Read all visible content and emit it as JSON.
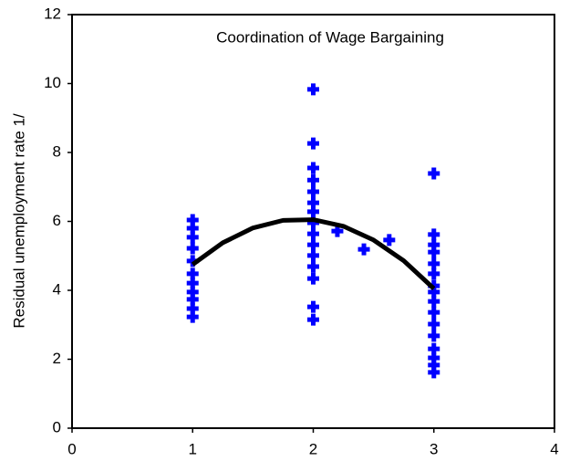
{
  "chart_data": {
    "type": "scatter",
    "title": "Coordination of Wage Bargaining",
    "y_label": "Residual unemployment rate 1/",
    "xlim": [
      0,
      4
    ],
    "xticks": [
      0,
      1,
      2,
      3,
      4
    ],
    "ylim": [
      0,
      12
    ],
    "yticks": [
      0,
      2,
      4,
      6,
      8,
      10,
      12
    ],
    "grid": false,
    "series": [
      {
        "type": "scatter",
        "color": "#0000ff",
        "x": [
          1,
          1,
          1,
          1,
          1,
          1,
          1,
          1,
          1,
          1,
          1,
          2,
          2,
          2,
          2,
          2,
          2,
          2,
          2,
          2,
          2,
          2,
          2,
          2,
          2,
          2,
          2.2,
          2.42,
          2.63,
          3,
          3,
          3,
          3,
          3,
          3,
          3,
          3,
          3,
          3,
          3,
          3,
          3,
          3,
          3,
          3
        ],
        "values": [
          6.04,
          5.8,
          5.54,
          5.22,
          4.85,
          4.48,
          4.21,
          3.95,
          3.74,
          3.47,
          3.23,
          9.83,
          8.26,
          7.55,
          7.2,
          6.86,
          6.54,
          6.28,
          5.96,
          5.64,
          5.32,
          5.01,
          4.69,
          4.34,
          3.52,
          3.15,
          5.72,
          5.19,
          5.46,
          7.39,
          5.62,
          5.32,
          5.11,
          4.77,
          4.48,
          4.13,
          3.95,
          3.68,
          3.36,
          3.02,
          2.68,
          2.3,
          2.04,
          1.83,
          1.62
        ]
      },
      {
        "type": "line",
        "color": "#000000",
        "x": [
          1,
          1.25,
          1.5,
          1.75,
          2,
          2.25,
          2.5,
          2.75,
          3
        ],
        "values": [
          4.75,
          5.38,
          5.81,
          6.03,
          6.05,
          5.86,
          5.46,
          4.86,
          4.05
        ]
      }
    ]
  }
}
